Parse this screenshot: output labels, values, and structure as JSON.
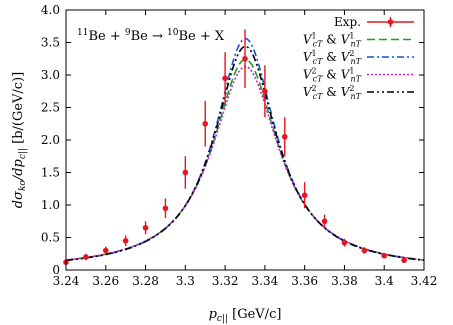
{
  "chart_data": {
    "type": "line",
    "title": "",
    "xlabel": "p_c|| [GeV/c]",
    "ylabel": "dσ_ko/dp_c|| [b/(GeV/c)]",
    "xlim": [
      3.24,
      3.42
    ],
    "ylim": [
      0,
      4.0
    ],
    "xticks": [
      "3.24",
      "3.26",
      "3.28",
      "3.3",
      "3.32",
      "3.34",
      "3.36",
      "3.38",
      "3.4",
      "3.42"
    ],
    "yticks": [
      "0",
      "0.5",
      "1.0",
      "1.5",
      "2.0",
      "2.5",
      "3.0",
      "3.5",
      "4.0"
    ],
    "annotation": {
      "pre1": "11",
      "t1": "Be + ",
      "pre2": "9",
      "t2": "Be → ",
      "pre3": "10",
      "t3": "Be + X"
    },
    "legend_position": "top-right",
    "experiment": {
      "name": "Exp.",
      "color": "#e8141e",
      "x": [
        3.24,
        3.25,
        3.26,
        3.27,
        3.28,
        3.29,
        3.3,
        3.31,
        3.32,
        3.33,
        3.34,
        3.35,
        3.36,
        3.37,
        3.38,
        3.39,
        3.4,
        3.41
      ],
      "y": [
        0.12,
        0.2,
        0.3,
        0.45,
        0.65,
        0.95,
        1.5,
        2.25,
        2.95,
        3.25,
        2.75,
        2.05,
        1.15,
        0.75,
        0.42,
        0.3,
        0.22,
        0.15
      ],
      "yerr": [
        0.04,
        0.05,
        0.06,
        0.08,
        0.1,
        0.15,
        0.25,
        0.35,
        0.4,
        0.45,
        0.4,
        0.3,
        0.2,
        0.1,
        0.06,
        0.05,
        0.04,
        0.04
      ]
    },
    "series": [
      {
        "name": "V_cT^1 & V_nT^1",
        "color": "#1f9e22",
        "dash": "8,4",
        "peak": 3.24,
        "center": 3.3302,
        "width": 0.02
      },
      {
        "name": "V_cT^1 & V_nT^2",
        "color": "#1a4fd6",
        "dash": "7,3,2,3",
        "peak": 3.56,
        "center": 3.3302,
        "width": 0.0188
      },
      {
        "name": "V_cT^2 & V_nT^1",
        "color": "#cc22cc",
        "dash": "2,2",
        "peak": 3.13,
        "center": 3.3302,
        "width": 0.0205
      },
      {
        "name": "V_cT^2 & V_nT^2",
        "color": "#000000",
        "dash": "7,3,2,3,2,3",
        "peak": 3.44,
        "center": 3.3302,
        "width": 0.0192
      }
    ]
  }
}
